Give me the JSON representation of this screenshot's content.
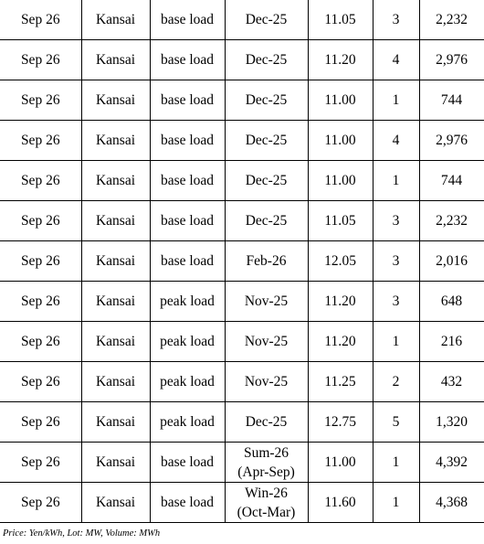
{
  "rows": [
    {
      "date": "Sep 26",
      "area": "Kansai",
      "load": "base load",
      "period": "Dec-25",
      "price": "11.05",
      "lot": "3",
      "volume": "2,232"
    },
    {
      "date": "Sep 26",
      "area": "Kansai",
      "load": "base load",
      "period": "Dec-25",
      "price": "11.20",
      "lot": "4",
      "volume": "2,976"
    },
    {
      "date": "Sep 26",
      "area": "Kansai",
      "load": "base load",
      "period": "Dec-25",
      "price": "11.00",
      "lot": "1",
      "volume": "744"
    },
    {
      "date": "Sep 26",
      "area": "Kansai",
      "load": "base load",
      "period": "Dec-25",
      "price": "11.00",
      "lot": "4",
      "volume": "2,976"
    },
    {
      "date": "Sep 26",
      "area": "Kansai",
      "load": "base load",
      "period": "Dec-25",
      "price": "11.00",
      "lot": "1",
      "volume": "744"
    },
    {
      "date": "Sep 26",
      "area": "Kansai",
      "load": "base load",
      "period": "Dec-25",
      "price": "11.05",
      "lot": "3",
      "volume": "2,232"
    },
    {
      "date": "Sep 26",
      "area": "Kansai",
      "load": "base load",
      "period": "Feb-26",
      "price": "12.05",
      "lot": "3",
      "volume": "2,016"
    },
    {
      "date": "Sep 26",
      "area": "Kansai",
      "load": "peak load",
      "period": "Nov-25",
      "price": "11.20",
      "lot": "3",
      "volume": "648"
    },
    {
      "date": "Sep 26",
      "area": "Kansai",
      "load": "peak load",
      "period": "Nov-25",
      "price": "11.20",
      "lot": "1",
      "volume": "216"
    },
    {
      "date": "Sep 26",
      "area": "Kansai",
      "load": "peak load",
      "period": "Nov-25",
      "price": "11.25",
      "lot": "2",
      "volume": "432"
    },
    {
      "date": "Sep 26",
      "area": "Kansai",
      "load": "peak load",
      "period": "Dec-25",
      "price": "12.75",
      "lot": "5",
      "volume": "1,320"
    },
    {
      "date": "Sep 26",
      "area": "Kansai",
      "load": "base load",
      "period": "Sum-26\n(Apr-Sep)",
      "price": "11.00",
      "lot": "1",
      "volume": "4,392"
    },
    {
      "date": "Sep 26",
      "area": "Kansai",
      "load": "base load",
      "period": "Win-26\n(Oct-Mar)",
      "price": "11.60",
      "lot": "1",
      "volume": "4,368"
    }
  ],
  "footnote": "Price: Yen/kWh, Lot: MW, Volume: MWh"
}
